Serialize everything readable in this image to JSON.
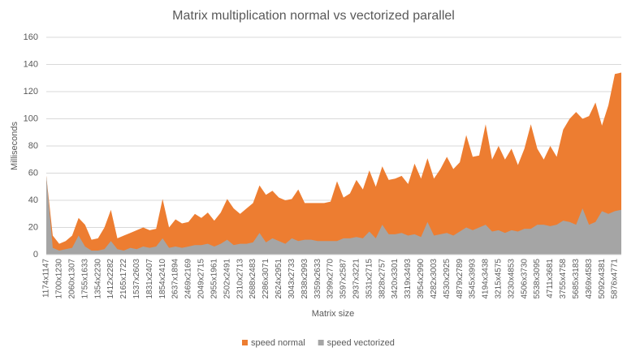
{
  "chart_data": {
    "type": "area",
    "title": "Matrix multiplication normal vs vectorized parallel",
    "x_label": "Matrix size",
    "y_label": "Milliseconds",
    "categories": [
      "1174x1147",
      null,
      "1700x1230",
      null,
      "2060x1307",
      null,
      "1755x1633",
      null,
      "1354x2230",
      null,
      "1412x2282",
      null,
      "2165x1722",
      null,
      "1537x2603",
      null,
      "1831x2407",
      null,
      "1854x2410",
      null,
      "2637x1894",
      null,
      "2469x2169",
      null,
      "2049x2715",
      null,
      "2955x1961",
      null,
      "2502x2491",
      null,
      "2310x2713",
      null,
      "2688x2483",
      null,
      "2286x3071",
      null,
      "2624x2951",
      null,
      "3043x2733",
      null,
      "2838x2993",
      null,
      "3359x2633",
      null,
      "3299x2770",
      null,
      "3597x2587",
      null,
      "2937x3221",
      null,
      "3531x2715",
      null,
      "3828x2757",
      null,
      "3420x3301",
      null,
      "3319x3493",
      null,
      "3954x2990",
      null,
      "4282x3003",
      null,
      "4530x2925",
      null,
      "4879x2789",
      null,
      "3545x3993",
      null,
      "4194x3438",
      null,
      "3215x4575",
      null,
      "3230x4853",
      null,
      "4506x3730",
      null,
      "5538x3095",
      null,
      "4711x3681",
      null,
      "3755x4758",
      null,
      "5685x3183",
      null,
      "4369x4583",
      null,
      "5092x4381",
      null,
      "5876x4771",
      null
    ],
    "series": [
      {
        "name": "speed normal",
        "color": "#ed7d31",
        "values": [
          58,
          14,
          8,
          10,
          14,
          27,
          22,
          11,
          12,
          20,
          33,
          12,
          14,
          16,
          18,
          20,
          18,
          19,
          41,
          20,
          26,
          23,
          24,
          30,
          27,
          31,
          25,
          31,
          41,
          34,
          30,
          34,
          38,
          51,
          44,
          47,
          42,
          40,
          41,
          48,
          38,
          38,
          38,
          38,
          39,
          54,
          42,
          45,
          55,
          48,
          62,
          50,
          65,
          55,
          56,
          58,
          52,
          67,
          56,
          71,
          56,
          63,
          72,
          63,
          68,
          88,
          72,
          73,
          96,
          70,
          80,
          70,
          78,
          66,
          78,
          96,
          78,
          70,
          80,
          72,
          92,
          100,
          105,
          100,
          102,
          112,
          95,
          110,
          133,
          134
        ]
      },
      {
        "name": "speed vectorized",
        "color": "#a5a5a5",
        "values": [
          58,
          5,
          3,
          4,
          5,
          14,
          6,
          3,
          3,
          4,
          10,
          4,
          3,
          5,
          4,
          6,
          5,
          6,
          12,
          5,
          6,
          5,
          6,
          7,
          7,
          8,
          6,
          8,
          11,
          7,
          8,
          8,
          9,
          16,
          9,
          12,
          10,
          8,
          12,
          10,
          11,
          11,
          10,
          10,
          10,
          10,
          12,
          12,
          13,
          12,
          17,
          12,
          22,
          15,
          15,
          16,
          14,
          15,
          13,
          24,
          14,
          15,
          16,
          14,
          17,
          20,
          18,
          20,
          22,
          17,
          18,
          16,
          18,
          17,
          19,
          19,
          22,
          22,
          21,
          22,
          25,
          24,
          22,
          34,
          22,
          24,
          32,
          30,
          32,
          33
        ]
      }
    ],
    "ylim": [
      0,
      160
    ],
    "yticks": [
      0,
      20,
      40,
      60,
      80,
      100,
      120,
      140,
      160
    ],
    "grid": true,
    "legend": "bottom"
  }
}
